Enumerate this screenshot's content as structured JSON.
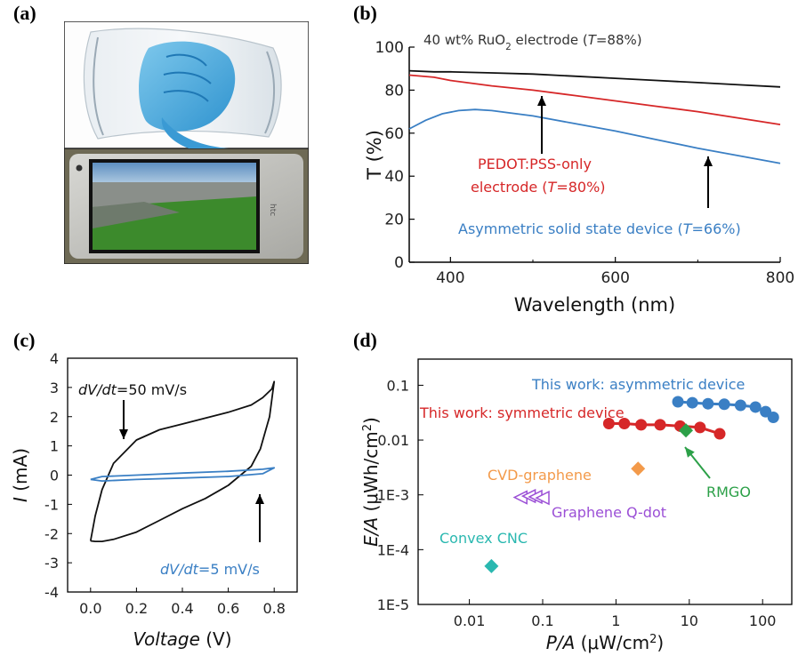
{
  "panels": {
    "a": {
      "label": "(a)"
    },
    "b": {
      "label": "(b)"
    },
    "c": {
      "label": "(c)"
    },
    "d": {
      "label": "(d)"
    }
  },
  "chart_data": [
    {
      "panel": "b",
      "type": "line",
      "xlabel": "Wavelength (nm)",
      "ylabel": "T (%)",
      "xlim": [
        350,
        800
      ],
      "ylim": [
        0,
        100
      ],
      "x_ticks": [
        400,
        600,
        800
      ],
      "y_ticks": [
        0,
        20,
        40,
        60,
        80,
        100
      ],
      "grid": false,
      "series": [
        {
          "name": "40 wt% RuO2 electrode (T=88%)",
          "color": "#111111",
          "x": [
            350,
            380,
            400,
            450,
            500,
            550,
            600,
            650,
            700,
            750,
            800
          ],
          "y": [
            89,
            88.5,
            88.5,
            88,
            87.5,
            86.5,
            85.5,
            84.5,
            83.5,
            82.5,
            81.5
          ]
        },
        {
          "name": "PEDOT:PSS-only electrode (T=80%)",
          "color": "#d62728",
          "x": [
            350,
            380,
            400,
            450,
            500,
            550,
            600,
            650,
            700,
            750,
            800
          ],
          "y": [
            87,
            86,
            84.5,
            82,
            80,
            77.5,
            75,
            72.5,
            70,
            67,
            64
          ]
        },
        {
          "name": "Asymmetric solid state device (T=66%)",
          "color": "#3a7fc4",
          "x": [
            350,
            370,
            390,
            410,
            430,
            450,
            500,
            550,
            600,
            650,
            700,
            750,
            800
          ],
          "y": [
            62,
            66,
            69,
            70.5,
            71,
            70.5,
            68,
            64.5,
            61,
            57,
            53,
            49.5,
            46
          ]
        }
      ],
      "annotations": [
        {
          "text_prefix": "40 wt% RuO",
          "text_sub": "2",
          "text_suffix": " electrode (",
          "text_italic": "T",
          "text_end": "=88%)",
          "color": "#333333"
        },
        {
          "line1": "PEDOT:PSS-only",
          "line2_prefix": "electrode (",
          "line2_italic": "T",
          "line2_end": "=80%)",
          "color": "#d62728"
        },
        {
          "text_prefix": "Asymmetric solid state device (",
          "text_italic": "T",
          "text_end": "=66%)",
          "color": "#3a7fc4"
        }
      ]
    },
    {
      "panel": "c",
      "type": "line",
      "xlabel": "Voltage",
      "xlabel_unit": " (V)",
      "ylabel": "I",
      "ylabel_unit": " (mA)",
      "xlim": [
        -0.1,
        0.9
      ],
      "ylim": [
        -4,
        4
      ],
      "x_ticks": [
        0.0,
        0.2,
        0.4,
        0.6,
        0.8
      ],
      "x_tick_labels": [
        "0.0",
        "0.2",
        "0.4",
        "0.6",
        "0.8"
      ],
      "y_ticks": [
        -4,
        -3,
        -2,
        -1,
        0,
        1,
        2,
        3,
        4
      ],
      "grid": false,
      "series": [
        {
          "name": "dV/dt=50 mV/s",
          "color": "#111111",
          "x": [
            0.0,
            0.02,
            0.05,
            0.1,
            0.2,
            0.3,
            0.4,
            0.5,
            0.6,
            0.7,
            0.75,
            0.79,
            0.8,
            0.78,
            0.74,
            0.7,
            0.6,
            0.5,
            0.4,
            0.3,
            0.2,
            0.1,
            0.05,
            0.02,
            0.0
          ],
          "y": [
            -2.25,
            -1.4,
            -0.5,
            0.4,
            1.2,
            1.55,
            1.75,
            1.95,
            2.15,
            2.4,
            2.65,
            2.95,
            3.2,
            2.0,
            0.9,
            0.3,
            -0.35,
            -0.8,
            -1.15,
            -1.55,
            -1.95,
            -2.2,
            -2.27,
            -2.27,
            -2.25
          ]
        },
        {
          "name": "dV/dt=5 mV/s",
          "color": "#3a7fc4",
          "x": [
            0.0,
            0.05,
            0.2,
            0.4,
            0.6,
            0.75,
            0.8,
            0.75,
            0.6,
            0.4,
            0.2,
            0.05,
            0.0
          ],
          "y": [
            -0.15,
            -0.05,
            0.0,
            0.07,
            0.13,
            0.2,
            0.25,
            0.05,
            -0.05,
            -0.1,
            -0.15,
            -0.2,
            -0.15
          ]
        }
      ],
      "annotations": [
        {
          "italic": "dV/dt",
          "rest": "=50 mV/s",
          "color": "#111111"
        },
        {
          "italic": "dV/dt",
          "rest": "=5 mV/s",
          "color": "#3a7fc4"
        }
      ]
    },
    {
      "panel": "d",
      "type": "scatter",
      "xscale": "log",
      "yscale": "log",
      "xlabel_italic": "P/A",
      "xlabel_unit": " (μW/cm",
      "xlabel_sup": "2",
      "xlabel_close": ")",
      "ylabel_italic": "E/A",
      "ylabel_unit": " (μWh/cm",
      "ylabel_sup": "2",
      "ylabel_close": ")",
      "xlim": [
        0.002,
        250
      ],
      "ylim": [
        1e-05,
        0.3
      ],
      "x_ticks": [
        0.01,
        0.1,
        1,
        10,
        100
      ],
      "x_tick_labels": [
        "0.01",
        "0.1",
        "1",
        "10",
        "100"
      ],
      "y_ticks": [
        1e-05,
        0.0001,
        0.001,
        0.01,
        0.1
      ],
      "y_tick_labels": [
        "1E-5",
        "1E-4",
        "1E-3",
        "0.01",
        "0.1"
      ],
      "grid": false,
      "series": [
        {
          "name": "This work: asymmetric device",
          "color": "#3a7fc4",
          "marker": "circle",
          "x": [
            7,
            11,
            18,
            30,
            50,
            80,
            110,
            140
          ],
          "y": [
            0.05,
            0.048,
            0.046,
            0.045,
            0.043,
            0.04,
            0.033,
            0.026
          ]
        },
        {
          "name": "This work: symmetric device",
          "color": "#d62728",
          "marker": "circle",
          "x": [
            0.8,
            1.3,
            2.2,
            4,
            7.5,
            14,
            26
          ],
          "y": [
            0.02,
            0.02,
            0.019,
            0.019,
            0.018,
            0.017,
            0.013
          ]
        },
        {
          "name": "CVD-graphene",
          "color": "#f39a4a",
          "marker": "diamond",
          "x": [
            2
          ],
          "y": [
            0.003
          ]
        },
        {
          "name": "RMGO",
          "color": "#2ca048",
          "marker": "diamond",
          "x": [
            9
          ],
          "y": [
            0.015
          ]
        },
        {
          "name": "Graphene Q-dot",
          "color": "#9b4fd6",
          "marker": "triangle-left",
          "x": [
            0.05,
            0.065,
            0.08,
            0.1
          ],
          "y": [
            0.0009,
            0.00095,
            0.00092,
            0.00088
          ]
        },
        {
          "name": "Convex CNC",
          "color": "#2ab8b0",
          "marker": "diamond",
          "x": [
            0.02
          ],
          "y": [
            5e-05
          ]
        }
      ]
    }
  ]
}
